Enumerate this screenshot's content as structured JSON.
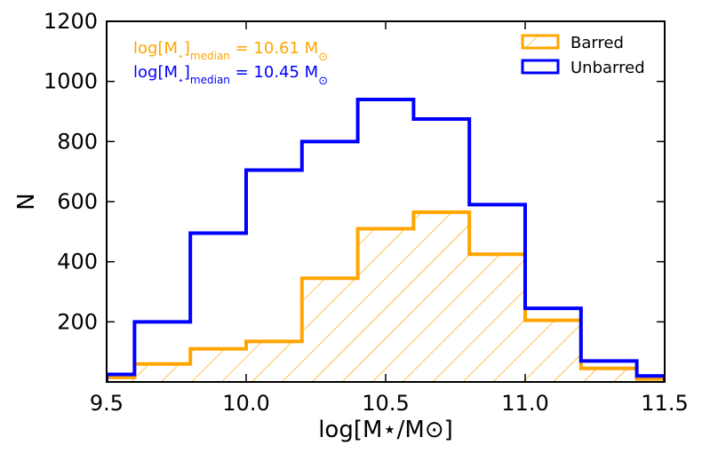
{
  "chart_data": {
    "type": "histogram",
    "xlabel": "log[M⋆/M⊙]",
    "ylabel": "N",
    "xlim": [
      9.5,
      11.5
    ],
    "ylim": [
      0,
      1200
    ],
    "xticks": [
      "9.5",
      "10.0",
      "10.5",
      "11.0",
      "11.5"
    ],
    "yticks": [
      "200",
      "400",
      "600",
      "800",
      "1000",
      "1200"
    ],
    "bin_edges": [
      9.5,
      9.6,
      9.8,
      10.0,
      10.2,
      10.4,
      10.6,
      10.8,
      11.0,
      11.2,
      11.4,
      11.5
    ],
    "series": [
      {
        "name": "Barred",
        "color": "#FFA500",
        "hatch": true,
        "values": [
          15,
          60,
          110,
          135,
          345,
          510,
          565,
          425,
          205,
          45,
          10
        ]
      },
      {
        "name": "Unbarred",
        "color": "#0000FF",
        "hatch": false,
        "values": [
          25,
          200,
          495,
          705,
          800,
          940,
          875,
          590,
          245,
          70,
          20
        ]
      }
    ],
    "annotations": [
      {
        "base": "log[M",
        "sub_star": "⋆",
        "bracket": "]",
        "sub": "median",
        "rest": " = 10.61 M",
        "sun": "⊙",
        "color": "#FFA500"
      },
      {
        "base": "log[M",
        "sub_star": "⋆",
        "bracket": "]",
        "sub": "median",
        "rest": " = 10.45 M",
        "sun": "⊙",
        "color": "#0000FF"
      }
    ],
    "legend": {
      "position": "top-right",
      "entries": [
        "Barred",
        "Unbarred"
      ]
    }
  }
}
